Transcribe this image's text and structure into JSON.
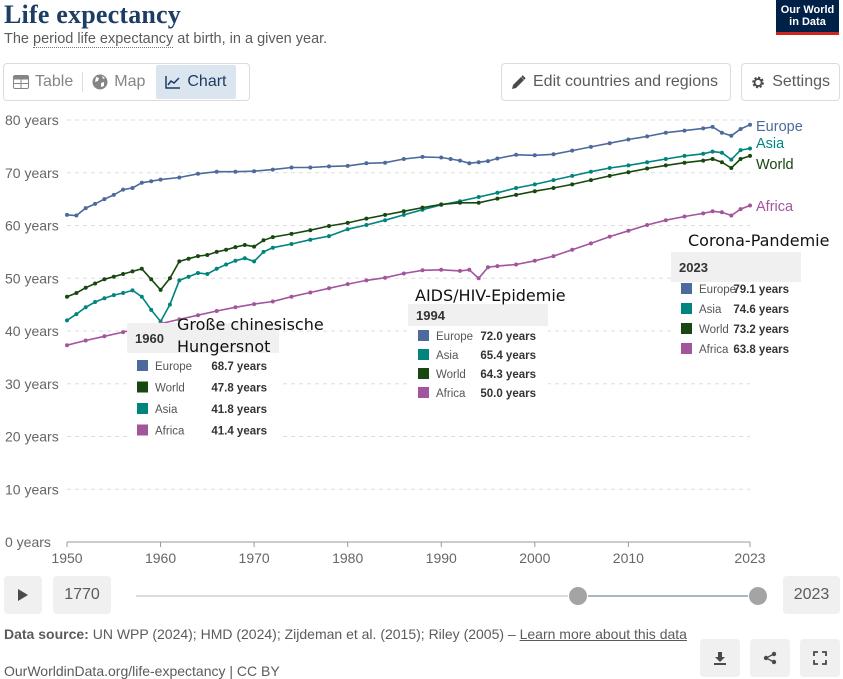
{
  "header": {
    "title": "Life expectancy",
    "subtitle_pre": "The ",
    "subtitle_link": "period life expectancy",
    "subtitle_post": " at birth, in a given year.",
    "logo_line1": "Our World",
    "logo_line2": "in Data"
  },
  "toolbar": {
    "tab_table": "Table",
    "tab_map": "Map",
    "tab_chart": "Chart",
    "edit_label": "Edit countries and regions",
    "settings_label": "Settings"
  },
  "timeline": {
    "start_year": "1770",
    "end_year": "2023"
  },
  "footer": {
    "source_label": "Data source:",
    "source_text": " UN WPP (2024); HMD (2024); Zijdeman et al. (2015); Riley (2005) – ",
    "learn_more": "Learn more about this data",
    "citation": "OurWorldinData.org/life-expectancy | CC BY"
  },
  "colors": {
    "europe": "#4c6a9c",
    "asia": "#00847e",
    "world": "#18470f",
    "africa": "#a2559c",
    "grid": "#dddddd",
    "axis_text": "#666666"
  },
  "chart_data": {
    "type": "line",
    "title": "Life expectancy",
    "xlabel": "",
    "ylabel": "",
    "xlim": [
      1950,
      2023
    ],
    "ylim": [
      0,
      80
    ],
    "x_ticks": [
      "1950",
      "1960",
      "1970",
      "1980",
      "1990",
      "2000",
      "2010",
      "2023"
    ],
    "x_tick_values": [
      1950,
      1960,
      1970,
      1980,
      1990,
      2000,
      2010,
      2023
    ],
    "y_ticks": [
      "0 years",
      "10 years",
      "20 years",
      "30 years",
      "40 years",
      "50 years",
      "60 years",
      "70 years",
      "80 years"
    ],
    "y_tick_values": [
      0,
      10,
      20,
      30,
      40,
      50,
      60,
      70,
      80
    ],
    "grid": true,
    "series": [
      {
        "name": "Europe",
        "color_key": "europe",
        "points": [
          [
            1950,
            62.0
          ],
          [
            1951,
            61.9
          ],
          [
            1952,
            63.3
          ],
          [
            1953,
            64.1
          ],
          [
            1954,
            65.0
          ],
          [
            1955,
            65.8
          ],
          [
            1956,
            66.8
          ],
          [
            1957,
            67.1
          ],
          [
            1958,
            68.1
          ],
          [
            1959,
            68.4
          ],
          [
            1960,
            68.7
          ],
          [
            1962,
            69.1
          ],
          [
            1964,
            69.8
          ],
          [
            1966,
            70.2
          ],
          [
            1968,
            70.2
          ],
          [
            1970,
            70.3
          ],
          [
            1972,
            70.6
          ],
          [
            1974,
            71.0
          ],
          [
            1976,
            71.0
          ],
          [
            1978,
            71.2
          ],
          [
            1980,
            71.3
          ],
          [
            1982,
            71.8
          ],
          [
            1984,
            71.9
          ],
          [
            1986,
            72.6
          ],
          [
            1988,
            73.0
          ],
          [
            1990,
            72.9
          ],
          [
            1991,
            72.6
          ],
          [
            1992,
            72.3
          ],
          [
            1993,
            71.8
          ],
          [
            1994,
            72.0
          ],
          [
            1995,
            72.2
          ],
          [
            1996,
            72.7
          ],
          [
            1998,
            73.4
          ],
          [
            2000,
            73.3
          ],
          [
            2002,
            73.5
          ],
          [
            2004,
            74.2
          ],
          [
            2006,
            74.9
          ],
          [
            2008,
            75.6
          ],
          [
            2010,
            76.3
          ],
          [
            2012,
            76.9
          ],
          [
            2014,
            77.6
          ],
          [
            2016,
            78.0
          ],
          [
            2018,
            78.4
          ],
          [
            2019,
            78.7
          ],
          [
            2020,
            77.6
          ],
          [
            2021,
            77.0
          ],
          [
            2022,
            78.3
          ],
          [
            2023,
            79.1
          ]
        ]
      },
      {
        "name": "Asia",
        "color_key": "asia",
        "points": [
          [
            1950,
            42.0
          ],
          [
            1951,
            43.2
          ],
          [
            1952,
            44.5
          ],
          [
            1953,
            45.5
          ],
          [
            1954,
            46.2
          ],
          [
            1955,
            46.8
          ],
          [
            1956,
            47.2
          ],
          [
            1957,
            47.7
          ],
          [
            1958,
            46.5
          ],
          [
            1959,
            44.0
          ],
          [
            1960,
            41.8
          ],
          [
            1961,
            45.0
          ],
          [
            1962,
            49.6
          ],
          [
            1963,
            50.3
          ],
          [
            1964,
            51.0
          ],
          [
            1965,
            50.8
          ],
          [
            1966,
            51.8
          ],
          [
            1967,
            52.6
          ],
          [
            1968,
            53.3
          ],
          [
            1969,
            53.8
          ],
          [
            1970,
            53.2
          ],
          [
            1971,
            55.0
          ],
          [
            1972,
            55.8
          ],
          [
            1974,
            56.5
          ],
          [
            1976,
            57.3
          ],
          [
            1978,
            58.0
          ],
          [
            1980,
            59.3
          ],
          [
            1982,
            60.1
          ],
          [
            1984,
            61.0
          ],
          [
            1986,
            62.0
          ],
          [
            1988,
            63.0
          ],
          [
            1990,
            63.9
          ],
          [
            1992,
            64.6
          ],
          [
            1994,
            65.4
          ],
          [
            1996,
            66.2
          ],
          [
            1998,
            67.1
          ],
          [
            2000,
            67.8
          ],
          [
            2002,
            68.6
          ],
          [
            2004,
            69.4
          ],
          [
            2006,
            70.2
          ],
          [
            2008,
            70.9
          ],
          [
            2010,
            71.4
          ],
          [
            2012,
            72.0
          ],
          [
            2014,
            72.6
          ],
          [
            2016,
            73.2
          ],
          [
            2018,
            73.6
          ],
          [
            2019,
            74.0
          ],
          [
            2020,
            73.8
          ],
          [
            2021,
            72.5
          ],
          [
            2022,
            74.3
          ],
          [
            2023,
            74.6
          ]
        ]
      },
      {
        "name": "World",
        "color_key": "world",
        "points": [
          [
            1950,
            46.5
          ],
          [
            1951,
            47.2
          ],
          [
            1952,
            48.2
          ],
          [
            1953,
            49.0
          ],
          [
            1954,
            49.8
          ],
          [
            1955,
            50.3
          ],
          [
            1956,
            50.8
          ],
          [
            1957,
            51.3
          ],
          [
            1958,
            51.8
          ],
          [
            1959,
            49.8
          ],
          [
            1960,
            47.8
          ],
          [
            1961,
            50.0
          ],
          [
            1962,
            53.2
          ],
          [
            1963,
            53.7
          ],
          [
            1964,
            54.2
          ],
          [
            1965,
            54.4
          ],
          [
            1966,
            55.0
          ],
          [
            1967,
            55.4
          ],
          [
            1968,
            55.9
          ],
          [
            1969,
            56.3
          ],
          [
            1970,
            56.0
          ],
          [
            1971,
            57.2
          ],
          [
            1972,
            57.8
          ],
          [
            1974,
            58.4
          ],
          [
            1976,
            59.1
          ],
          [
            1978,
            59.9
          ],
          [
            1980,
            60.5
          ],
          [
            1982,
            61.3
          ],
          [
            1984,
            62.0
          ],
          [
            1986,
            62.7
          ],
          [
            1988,
            63.4
          ],
          [
            1990,
            64.0
          ],
          [
            1992,
            64.3
          ],
          [
            1994,
            64.3
          ],
          [
            1996,
            65.1
          ],
          [
            1998,
            65.8
          ],
          [
            2000,
            66.5
          ],
          [
            2002,
            67.1
          ],
          [
            2004,
            67.8
          ],
          [
            2006,
            68.6
          ],
          [
            2008,
            69.4
          ],
          [
            2010,
            70.1
          ],
          [
            2012,
            70.8
          ],
          [
            2014,
            71.4
          ],
          [
            2016,
            71.9
          ],
          [
            2018,
            72.3
          ],
          [
            2019,
            72.6
          ],
          [
            2020,
            72.0
          ],
          [
            2021,
            70.9
          ],
          [
            2022,
            72.6
          ],
          [
            2023,
            73.2
          ]
        ]
      },
      {
        "name": "Africa",
        "color_key": "africa",
        "points": [
          [
            1950,
            37.3
          ],
          [
            1952,
            38.2
          ],
          [
            1954,
            39.0
          ],
          [
            1956,
            39.8
          ],
          [
            1958,
            40.6
          ],
          [
            1960,
            41.4
          ],
          [
            1962,
            42.2
          ],
          [
            1964,
            43.0
          ],
          [
            1966,
            43.8
          ],
          [
            1968,
            44.5
          ],
          [
            1970,
            45.1
          ],
          [
            1972,
            45.6
          ],
          [
            1974,
            46.5
          ],
          [
            1976,
            47.3
          ],
          [
            1978,
            48.1
          ],
          [
            1980,
            48.9
          ],
          [
            1982,
            49.6
          ],
          [
            1984,
            50.1
          ],
          [
            1986,
            50.9
          ],
          [
            1988,
            51.5
          ],
          [
            1990,
            51.6
          ],
          [
            1992,
            51.4
          ],
          [
            1993,
            51.6
          ],
          [
            1994,
            50.0
          ],
          [
            1995,
            52.1
          ],
          [
            1996,
            52.3
          ],
          [
            1998,
            52.6
          ],
          [
            2000,
            53.3
          ],
          [
            2002,
            54.2
          ],
          [
            2004,
            55.4
          ],
          [
            2006,
            56.6
          ],
          [
            2008,
            57.9
          ],
          [
            2010,
            59.0
          ],
          [
            2012,
            60.1
          ],
          [
            2014,
            61.0
          ],
          [
            2016,
            61.7
          ],
          [
            2018,
            62.3
          ],
          [
            2019,
            62.7
          ],
          [
            2020,
            62.5
          ],
          [
            2021,
            61.9
          ],
          [
            2022,
            63.1
          ],
          [
            2023,
            63.8
          ]
        ]
      }
    ],
    "annotations": [
      {
        "year": "1960",
        "caption": [
          "Große chinesische",
          "Hungersnot"
        ],
        "rows": [
          {
            "name": "Europe",
            "color_key": "europe",
            "value": "68.7 years"
          },
          {
            "name": "World",
            "color_key": "world",
            "value": "47.8 years"
          },
          {
            "name": "Asia",
            "color_key": "asia",
            "value": "41.8 years"
          },
          {
            "name": "Africa",
            "color_key": "africa",
            "value": "41.4 years"
          }
        ]
      },
      {
        "year": "1994",
        "caption": [
          "AIDS/HIV-Epidemie"
        ],
        "rows": [
          {
            "name": "Europe",
            "color_key": "europe",
            "value": "72.0 years"
          },
          {
            "name": "Asia",
            "color_key": "asia",
            "value": "65.4 years"
          },
          {
            "name": "World",
            "color_key": "world",
            "value": "64.3 years"
          },
          {
            "name": "Africa",
            "color_key": "africa",
            "value": "50.0 years"
          }
        ]
      },
      {
        "year": "2023",
        "caption": [
          "Corona-Pandemie"
        ],
        "rows": [
          {
            "name": "Europe",
            "color_key": "europe",
            "value": "79.1 years"
          },
          {
            "name": "Asia",
            "color_key": "asia",
            "value": "74.6 years"
          },
          {
            "name": "World",
            "color_key": "world",
            "value": "73.2 years"
          },
          {
            "name": "Africa",
            "color_key": "africa",
            "value": "63.8 years"
          }
        ]
      }
    ]
  }
}
